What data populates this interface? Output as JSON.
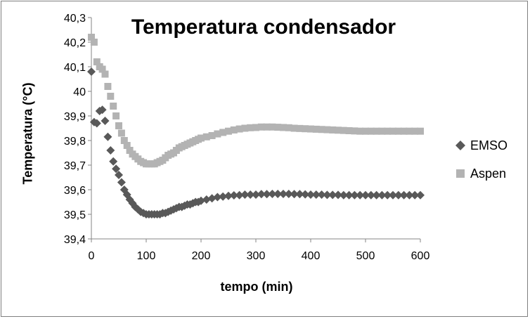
{
  "chart_data": {
    "type": "scatter",
    "title": "Temperatura condensador",
    "xlabel": "tempo (min)",
    "ylabel": "Temperatura (°C)",
    "xlim": [
      0,
      600
    ],
    "ylim": [
      39.4,
      40.3
    ],
    "xticks": [
      "0",
      "100",
      "200",
      "300",
      "400",
      "500",
      "600"
    ],
    "yticks": [
      "39,4",
      "39,5",
      "39,6",
      "39,7",
      "39,8",
      "39,9",
      "40",
      "40,1",
      "40,2",
      "40,3"
    ],
    "grid": false,
    "legend_position": "right",
    "series": [
      {
        "name": "EMSO",
        "marker": "diamond",
        "color": "#595959",
        "x": [
          0,
          5,
          10,
          15,
          20,
          25,
          30,
          35,
          40,
          45,
          50,
          55,
          60,
          65,
          70,
          75,
          80,
          85,
          90,
          95,
          100,
          105,
          110,
          115,
          120,
          125,
          130,
          135,
          140,
          145,
          150,
          155,
          160,
          165,
          170,
          175,
          180,
          185,
          190,
          195,
          200,
          210,
          220,
          230,
          240,
          250,
          260,
          270,
          280,
          290,
          300,
          310,
          320,
          330,
          340,
          350,
          360,
          370,
          380,
          390,
          400,
          410,
          420,
          430,
          440,
          450,
          460,
          470,
          480,
          490,
          500,
          510,
          520,
          530,
          540,
          550,
          560,
          570,
          580,
          590,
          600
        ],
        "y": [
          40.08,
          39.875,
          39.87,
          39.92,
          39.925,
          39.88,
          39.815,
          39.76,
          39.715,
          39.685,
          39.66,
          39.63,
          39.6,
          39.58,
          39.56,
          39.545,
          39.53,
          39.52,
          39.51,
          39.505,
          39.5,
          39.5,
          39.5,
          39.5,
          39.5,
          39.5,
          39.505,
          39.505,
          39.51,
          39.515,
          39.52,
          39.525,
          39.53,
          39.53,
          39.535,
          39.54,
          39.54,
          39.545,
          39.55,
          39.55,
          39.555,
          39.56,
          39.565,
          39.57,
          39.572,
          39.575,
          39.577,
          39.578,
          39.58,
          39.58,
          39.58,
          39.582,
          39.582,
          39.583,
          39.583,
          39.583,
          39.583,
          39.582,
          39.582,
          39.581,
          39.58,
          39.58,
          39.58,
          39.579,
          39.579,
          39.579,
          39.578,
          39.578,
          39.578,
          39.578,
          39.578,
          39.578,
          39.578,
          39.578,
          39.578,
          39.578,
          39.578,
          39.578,
          39.578,
          39.578,
          39.578
        ]
      },
      {
        "name": "Aspen",
        "marker": "square",
        "color": "#b3b3b3",
        "x": [
          0,
          5,
          10,
          15,
          20,
          25,
          30,
          35,
          40,
          45,
          50,
          55,
          60,
          65,
          70,
          75,
          80,
          85,
          90,
          95,
          100,
          105,
          110,
          115,
          120,
          125,
          130,
          135,
          140,
          145,
          150,
          155,
          160,
          165,
          170,
          175,
          180,
          185,
          190,
          195,
          200,
          210,
          220,
          230,
          240,
          250,
          260,
          270,
          280,
          290,
          300,
          310,
          320,
          330,
          340,
          350,
          360,
          370,
          380,
          390,
          400,
          410,
          420,
          430,
          440,
          450,
          460,
          470,
          480,
          490,
          500,
          510,
          520,
          530,
          540,
          550,
          560,
          570,
          580,
          590,
          600
        ],
        "y": [
          40.22,
          40.2,
          40.12,
          40.1,
          40.09,
          40.07,
          40.02,
          39.98,
          39.94,
          39.9,
          39.86,
          39.83,
          39.8,
          39.78,
          39.76,
          39.745,
          39.735,
          39.725,
          39.715,
          39.71,
          39.705,
          39.705,
          39.705,
          39.705,
          39.71,
          39.715,
          39.72,
          39.73,
          39.74,
          39.745,
          39.75,
          39.76,
          39.77,
          39.775,
          39.78,
          39.785,
          39.79,
          39.795,
          39.8,
          39.805,
          39.81,
          39.815,
          39.82,
          39.827,
          39.833,
          39.838,
          39.843,
          39.847,
          39.85,
          39.852,
          39.853,
          39.855,
          39.855,
          39.855,
          39.854,
          39.853,
          39.852,
          39.85,
          39.849,
          39.848,
          39.847,
          39.846,
          39.845,
          39.844,
          39.843,
          39.842,
          39.841,
          39.84,
          39.839,
          39.838,
          39.838,
          39.838,
          39.838,
          39.838,
          39.838,
          39.838,
          39.838,
          39.838,
          39.838,
          39.838,
          39.838
        ]
      }
    ]
  }
}
